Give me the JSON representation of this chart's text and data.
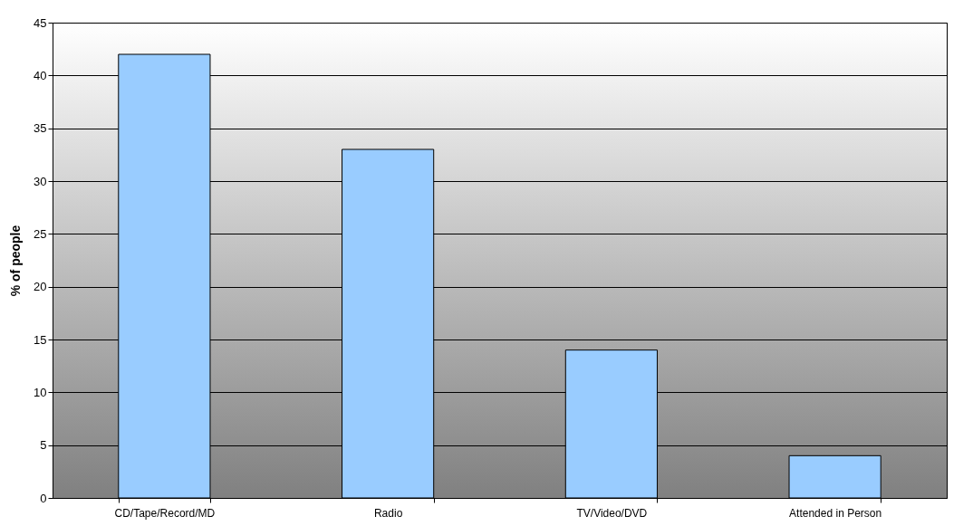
{
  "chart_data": {
    "type": "bar",
    "ylabel": "% of people",
    "categories": [
      "CD/Tape/Record/MD",
      "Radio",
      "TV/Video/DVD",
      "Attended in Person"
    ],
    "values": [
      42,
      33,
      14,
      4
    ],
    "color": "#99ccff",
    "ylim": [
      0,
      45
    ],
    "yticks": [
      0,
      5,
      10,
      15,
      20,
      25,
      30,
      35,
      40,
      45
    ],
    "grid": "y"
  }
}
